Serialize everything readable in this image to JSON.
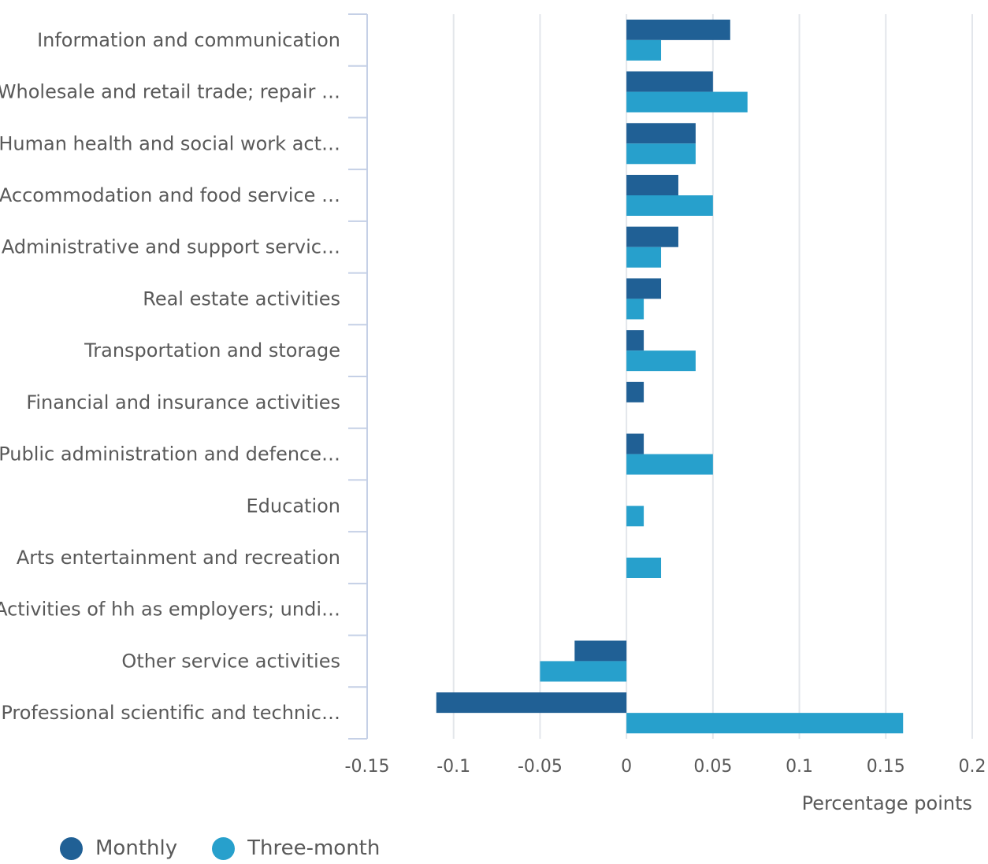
{
  "chart_data": {
    "type": "bar",
    "orientation": "horizontal",
    "categories": [
      "Information and communication",
      "Wholesale and retail trade; repair …",
      "Human health and social work act…",
      "Accommodation and food service …",
      "Administrative and support servic…",
      "Real estate activities",
      "Transportation and storage",
      "Financial and insurance activities",
      "Public administration and defence…",
      "Education",
      "Arts entertainment and recreation",
      "Activities of hh as employers; undi…",
      "Other service activities",
      "Professional scientific and technic…"
    ],
    "series": [
      {
        "name": "Monthly",
        "color": "#206095",
        "values": [
          0.06,
          0.05,
          0.04,
          0.03,
          0.03,
          0.02,
          0.01,
          0.01,
          0.01,
          0,
          0,
          0,
          -0.03,
          -0.11
        ]
      },
      {
        "name": "Three-month",
        "color": "#27a0cc",
        "values": [
          0.02,
          0.07,
          0.04,
          0.05,
          0.02,
          0.01,
          0.04,
          0,
          0.05,
          0.01,
          0.02,
          0,
          -0.05,
          0.16
        ]
      }
    ],
    "xlim": [
      -0.15,
      0.2
    ],
    "xticks": [
      -0.15,
      -0.1,
      -0.05,
      0,
      0.05,
      0.1,
      0.15,
      0.2
    ],
    "xtick_labels": [
      "-0.15",
      "-0.1",
      "-0.05",
      "0",
      "0.05",
      "0.1",
      "0.15",
      "0.2"
    ],
    "xlabel": "Percentage points",
    "grid": "vertical",
    "legend_position": "bottom-left"
  }
}
